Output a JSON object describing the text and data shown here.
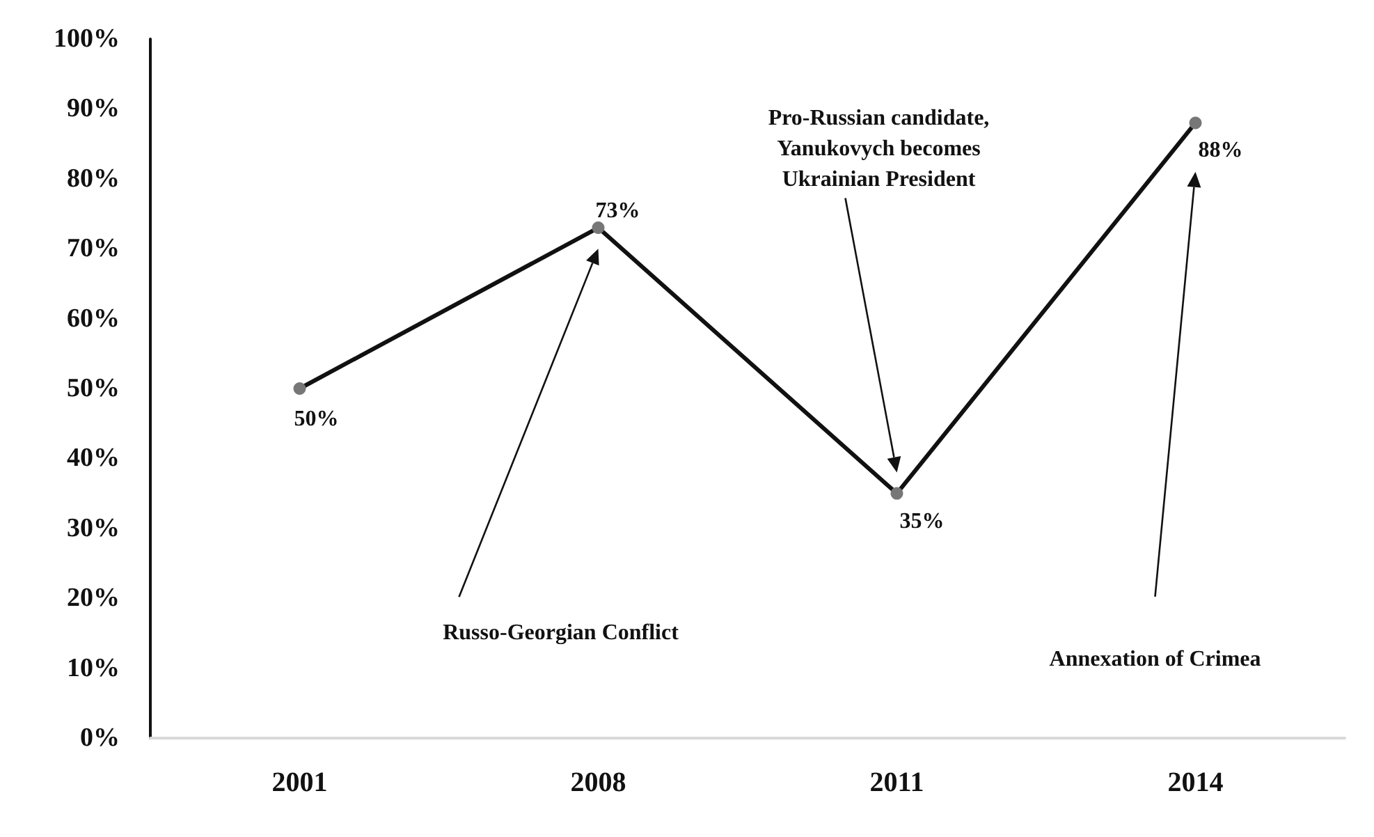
{
  "chart_data": {
    "type": "line",
    "categories": [
      "2001",
      "2008",
      "2011",
      "2014"
    ],
    "series": [
      {
        "color": "#111111",
        "values": [
          50,
          73,
          35,
          88
        ],
        "value_labels": [
          "50%",
          "73%",
          "35%",
          "88%"
        ]
      }
    ],
    "marker": "circle",
    "grid": false,
    "ylim": [
      0,
      100
    ],
    "yticks": [
      {
        "value": 0,
        "label": "0%"
      },
      {
        "value": 10,
        "label": "10%"
      },
      {
        "value": 20,
        "label": "20%"
      },
      {
        "value": 30,
        "label": "30%"
      },
      {
        "value": 40,
        "label": "40%"
      },
      {
        "value": 50,
        "label": "50%"
      },
      {
        "value": 60,
        "label": "60%"
      },
      {
        "value": 70,
        "label": "70%"
      },
      {
        "value": 80,
        "label": "80%"
      },
      {
        "value": 90,
        "label": "90%"
      },
      {
        "value": 100,
        "label": "100%"
      }
    ],
    "annotations": [
      "Russo-Georgian Conflict",
      "Pro-Russian candidate,\nYanukovych becomes\nUkrainian President",
      "Annexation of Crimea"
    ]
  }
}
